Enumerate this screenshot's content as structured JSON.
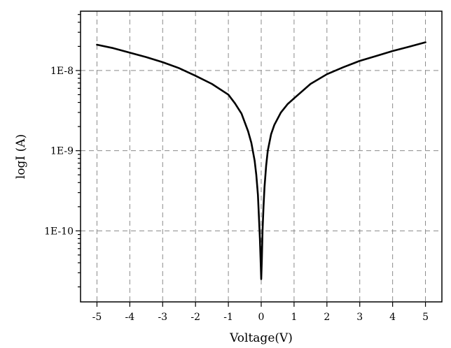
{
  "chart_data": {
    "type": "line",
    "xlabel": "Voltage(V)",
    "ylabel": "logI (A)",
    "x_scale": "linear",
    "y_scale": "log",
    "xlim": [
      -5.5,
      5.5
    ],
    "ylim": [
      1.3e-11,
      5.5e-08
    ],
    "x_ticks": [
      -5,
      -4,
      -3,
      -2,
      -1,
      0,
      1,
      2,
      3,
      4,
      5
    ],
    "x_tick_labels": [
      "-5",
      "-4",
      "-3",
      "-2",
      "-1",
      "0",
      "1",
      "2",
      "3",
      "4",
      "5"
    ],
    "y_ticks": [
      1e-10,
      1e-09,
      1e-08
    ],
    "y_tick_labels": [
      "1E-10",
      "1E-9",
      "1E-8"
    ],
    "grid": true,
    "series": [
      {
        "color": "#000000",
        "x": [
          -5,
          -4.5,
          -4,
          -3.5,
          -3,
          -2.5,
          -2,
          -1.5,
          -1,
          -0.8,
          -0.6,
          -0.4,
          -0.3,
          -0.2,
          -0.15,
          -0.1,
          -0.07,
          -0.04,
          -0.02,
          0,
          0.02,
          0.04,
          0.07,
          0.1,
          0.15,
          0.2,
          0.3,
          0.4,
          0.6,
          0.8,
          1,
          1.5,
          2,
          2.5,
          3,
          3.5,
          4,
          4.5,
          5
        ],
        "y": [
          2.1e-08,
          1.9e-08,
          1.67e-08,
          1.47e-08,
          1.27e-08,
          1.07e-08,
          8.6e-09,
          6.8e-09,
          5e-09,
          3.9e-09,
          2.9e-09,
          1.75e-09,
          1.25e-09,
          7.5e-10,
          5e-10,
          2.8e-10,
          1.5e-10,
          8e-11,
          4.5e-11,
          2.5e-11,
          4.5e-11,
          1e-10,
          2e-10,
          3.5e-10,
          6.5e-10,
          1e-09,
          1.6e-09,
          2.1e-09,
          3e-09,
          3.8e-09,
          4.5e-09,
          6.8e-09,
          9e-09,
          1.1e-08,
          1.32e-08,
          1.52e-08,
          1.75e-08,
          1.98e-08,
          2.25e-08
        ]
      }
    ]
  }
}
